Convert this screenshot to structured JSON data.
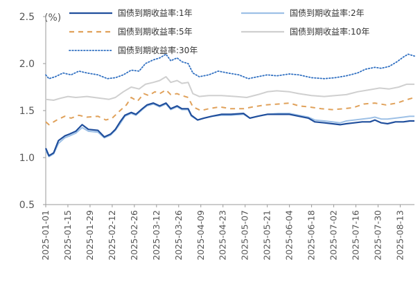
{
  "chart_data": {
    "type": "line",
    "unit": "(%)",
    "ylim": [
      0.5,
      2.5
    ],
    "yticks": [
      "0.5",
      "1.0",
      "1.5",
      "2.0",
      "2.5"
    ],
    "xticks": [
      "2025-01-01",
      "2025-01-15",
      "2025-01-29",
      "2025-02-12",
      "2025-02-26",
      "2025-03-12",
      "2025-03-26",
      "2025-04-09",
      "2025-04-23",
      "2025-05-07",
      "2025-05-21",
      "2025-06-04",
      "2025-06-18",
      "2025-07-02",
      "2025-07-16",
      "2025-07-30",
      "2025-08-13"
    ],
    "x_start": "2025-01-01",
    "x_end": "2025-08-22",
    "legend": "top, two columns",
    "grid": false,
    "series": [
      {
        "name": "国债到期收益率:1年",
        "color": "#1f4e9c",
        "style": "solid",
        "points": [
          [
            "2025-01-01",
            1.1
          ],
          [
            "2025-01-03",
            1.02
          ],
          [
            "2025-01-06",
            1.05
          ],
          [
            "2025-01-09",
            1.18
          ],
          [
            "2025-01-13",
            1.23
          ],
          [
            "2025-01-16",
            1.25
          ],
          [
            "2025-01-20",
            1.28
          ],
          [
            "2025-01-24",
            1.35
          ],
          [
            "2025-01-28",
            1.3
          ],
          [
            "2025-02-03",
            1.29
          ],
          [
            "2025-02-07",
            1.22
          ],
          [
            "2025-02-11",
            1.25
          ],
          [
            "2025-02-14",
            1.3
          ],
          [
            "2025-02-17",
            1.38
          ],
          [
            "2025-02-20",
            1.45
          ],
          [
            "2025-02-24",
            1.48
          ],
          [
            "2025-02-27",
            1.46
          ],
          [
            "2025-03-03",
            1.52
          ],
          [
            "2025-03-06",
            1.56
          ],
          [
            "2025-03-10",
            1.58
          ],
          [
            "2025-03-14",
            1.55
          ],
          [
            "2025-03-18",
            1.58
          ],
          [
            "2025-03-21",
            1.52
          ],
          [
            "2025-03-25",
            1.55
          ],
          [
            "2025-03-28",
            1.52
          ],
          [
            "2025-04-01",
            1.52
          ],
          [
            "2025-04-03",
            1.45
          ],
          [
            "2025-04-07",
            1.4
          ],
          [
            "2025-04-11",
            1.42
          ],
          [
            "2025-04-16",
            1.44
          ],
          [
            "2025-04-22",
            1.46
          ],
          [
            "2025-04-28",
            1.46
          ],
          [
            "2025-05-06",
            1.47
          ],
          [
            "2025-05-10",
            1.42
          ],
          [
            "2025-05-15",
            1.44
          ],
          [
            "2025-05-21",
            1.46
          ],
          [
            "2025-05-28",
            1.46
          ],
          [
            "2025-06-04",
            1.46
          ],
          [
            "2025-06-10",
            1.44
          ],
          [
            "2025-06-16",
            1.42
          ],
          [
            "2025-06-20",
            1.38
          ],
          [
            "2025-06-26",
            1.37
          ],
          [
            "2025-07-01",
            1.36
          ],
          [
            "2025-07-06",
            1.35
          ],
          [
            "2025-07-10",
            1.36
          ],
          [
            "2025-07-15",
            1.37
          ],
          [
            "2025-07-20",
            1.38
          ],
          [
            "2025-07-25",
            1.38
          ],
          [
            "2025-07-28",
            1.4
          ],
          [
            "2025-08-01",
            1.37
          ],
          [
            "2025-08-05",
            1.36
          ],
          [
            "2025-08-10",
            1.38
          ],
          [
            "2025-08-15",
            1.38
          ],
          [
            "2025-08-19",
            1.39
          ],
          [
            "2025-08-22",
            1.39
          ]
        ]
      },
      {
        "name": "国债到期收益率:2年",
        "color": "#9dc0e6",
        "style": "solid",
        "points": [
          [
            "2025-01-01",
            1.08
          ],
          [
            "2025-01-03",
            1.01
          ],
          [
            "2025-01-06",
            1.04
          ],
          [
            "2025-01-09",
            1.15
          ],
          [
            "2025-01-13",
            1.21
          ],
          [
            "2025-01-16",
            1.23
          ],
          [
            "2025-01-20",
            1.26
          ],
          [
            "2025-01-24",
            1.32
          ],
          [
            "2025-01-28",
            1.28
          ],
          [
            "2025-02-03",
            1.27
          ],
          [
            "2025-02-07",
            1.21
          ],
          [
            "2025-02-11",
            1.24
          ],
          [
            "2025-02-14",
            1.29
          ],
          [
            "2025-02-17",
            1.36
          ],
          [
            "2025-02-20",
            1.44
          ],
          [
            "2025-02-24",
            1.47
          ],
          [
            "2025-02-27",
            1.45
          ],
          [
            "2025-03-03",
            1.51
          ],
          [
            "2025-03-06",
            1.55
          ],
          [
            "2025-03-10",
            1.57
          ],
          [
            "2025-03-14",
            1.54
          ],
          [
            "2025-03-18",
            1.57
          ],
          [
            "2025-03-21",
            1.51
          ],
          [
            "2025-03-25",
            1.54
          ],
          [
            "2025-03-28",
            1.51
          ],
          [
            "2025-04-01",
            1.51
          ],
          [
            "2025-04-03",
            1.44
          ],
          [
            "2025-04-07",
            1.4
          ],
          [
            "2025-04-11",
            1.42
          ],
          [
            "2025-04-16",
            1.44
          ],
          [
            "2025-04-22",
            1.45
          ],
          [
            "2025-04-28",
            1.45
          ],
          [
            "2025-05-06",
            1.46
          ],
          [
            "2025-05-10",
            1.42
          ],
          [
            "2025-05-15",
            1.44
          ],
          [
            "2025-05-21",
            1.46
          ],
          [
            "2025-05-28",
            1.47
          ],
          [
            "2025-06-04",
            1.47
          ],
          [
            "2025-06-10",
            1.45
          ],
          [
            "2025-06-16",
            1.43
          ],
          [
            "2025-06-20",
            1.4
          ],
          [
            "2025-06-26",
            1.39
          ],
          [
            "2025-07-01",
            1.38
          ],
          [
            "2025-07-06",
            1.37
          ],
          [
            "2025-07-10",
            1.39
          ],
          [
            "2025-07-15",
            1.4
          ],
          [
            "2025-07-20",
            1.41
          ],
          [
            "2025-07-25",
            1.42
          ],
          [
            "2025-07-28",
            1.43
          ],
          [
            "2025-08-01",
            1.41
          ],
          [
            "2025-08-05",
            1.41
          ],
          [
            "2025-08-10",
            1.42
          ],
          [
            "2025-08-15",
            1.43
          ],
          [
            "2025-08-19",
            1.44
          ],
          [
            "2025-08-22",
            1.44
          ]
        ]
      },
      {
        "name": "国债到期收益率:5年",
        "color": "#e0a15a",
        "style": "dashed",
        "points": [
          [
            "2025-01-01",
            1.38
          ],
          [
            "2025-01-03",
            1.35
          ],
          [
            "2025-01-08",
            1.4
          ],
          [
            "2025-01-13",
            1.44
          ],
          [
            "2025-01-17",
            1.42
          ],
          [
            "2025-01-22",
            1.45
          ],
          [
            "2025-01-27",
            1.43
          ],
          [
            "2025-02-03",
            1.44
          ],
          [
            "2025-02-08",
            1.4
          ],
          [
            "2025-02-12",
            1.42
          ],
          [
            "2025-02-17",
            1.5
          ],
          [
            "2025-02-21",
            1.56
          ],
          [
            "2025-02-24",
            1.64
          ],
          [
            "2025-02-28",
            1.6
          ],
          [
            "2025-03-04",
            1.68
          ],
          [
            "2025-03-07",
            1.66
          ],
          [
            "2025-03-11",
            1.7
          ],
          [
            "2025-03-14",
            1.68
          ],
          [
            "2025-03-18",
            1.72
          ],
          [
            "2025-03-21",
            1.67
          ],
          [
            "2025-03-25",
            1.68
          ],
          [
            "2025-03-28",
            1.66
          ],
          [
            "2025-04-01",
            1.64
          ],
          [
            "2025-04-04",
            1.54
          ],
          [
            "2025-04-09",
            1.5
          ],
          [
            "2025-04-14",
            1.52
          ],
          [
            "2025-04-21",
            1.54
          ],
          [
            "2025-04-28",
            1.52
          ],
          [
            "2025-05-06",
            1.52
          ],
          [
            "2025-05-12",
            1.54
          ],
          [
            "2025-05-20",
            1.56
          ],
          [
            "2025-05-28",
            1.57
          ],
          [
            "2025-06-04",
            1.58
          ],
          [
            "2025-06-10",
            1.55
          ],
          [
            "2025-06-16",
            1.54
          ],
          [
            "2025-06-24",
            1.52
          ],
          [
            "2025-07-01",
            1.51
          ],
          [
            "2025-07-08",
            1.52
          ],
          [
            "2025-07-14",
            1.53
          ],
          [
            "2025-07-21",
            1.57
          ],
          [
            "2025-07-28",
            1.58
          ],
          [
            "2025-08-04",
            1.56
          ],
          [
            "2025-08-11",
            1.58
          ],
          [
            "2025-08-16",
            1.61
          ],
          [
            "2025-08-22",
            1.64
          ]
        ]
      },
      {
        "name": "国债到期收益率:10年",
        "color": "#cfcfcf",
        "style": "solid",
        "points": [
          [
            "2025-01-01",
            1.62
          ],
          [
            "2025-01-06",
            1.61
          ],
          [
            "2025-01-10",
            1.63
          ],
          [
            "2025-01-15",
            1.65
          ],
          [
            "2025-01-20",
            1.64
          ],
          [
            "2025-01-27",
            1.65
          ],
          [
            "2025-02-05",
            1.63
          ],
          [
            "2025-02-10",
            1.62
          ],
          [
            "2025-02-14",
            1.64
          ],
          [
            "2025-02-19",
            1.7
          ],
          [
            "2025-02-24",
            1.75
          ],
          [
            "2025-03-01",
            1.73
          ],
          [
            "2025-03-05",
            1.78
          ],
          [
            "2025-03-10",
            1.8
          ],
          [
            "2025-03-14",
            1.82
          ],
          [
            "2025-03-18",
            1.86
          ],
          [
            "2025-03-21",
            1.8
          ],
          [
            "2025-03-25",
            1.82
          ],
          [
            "2025-03-28",
            1.79
          ],
          [
            "2025-04-01",
            1.8
          ],
          [
            "2025-04-04",
            1.68
          ],
          [
            "2025-04-08",
            1.65
          ],
          [
            "2025-04-14",
            1.66
          ],
          [
            "2025-04-22",
            1.66
          ],
          [
            "2025-05-01",
            1.65
          ],
          [
            "2025-05-08",
            1.64
          ],
          [
            "2025-05-15",
            1.67
          ],
          [
            "2025-05-21",
            1.7
          ],
          [
            "2025-05-27",
            1.71
          ],
          [
            "2025-06-04",
            1.7
          ],
          [
            "2025-06-10",
            1.68
          ],
          [
            "2025-06-18",
            1.66
          ],
          [
            "2025-06-26",
            1.65
          ],
          [
            "2025-07-03",
            1.66
          ],
          [
            "2025-07-10",
            1.67
          ],
          [
            "2025-07-17",
            1.7
          ],
          [
            "2025-07-24",
            1.72
          ],
          [
            "2025-07-31",
            1.74
          ],
          [
            "2025-08-06",
            1.73
          ],
          [
            "2025-08-12",
            1.75
          ],
          [
            "2025-08-17",
            1.78
          ],
          [
            "2025-08-22",
            1.78
          ]
        ]
      },
      {
        "name": "国债到期收益率:30年",
        "color": "#2f6fc1",
        "style": "dotted",
        "points": [
          [
            "2025-01-01",
            1.88
          ],
          [
            "2025-01-03",
            1.84
          ],
          [
            "2025-01-07",
            1.86
          ],
          [
            "2025-01-12",
            1.9
          ],
          [
            "2025-01-17",
            1.88
          ],
          [
            "2025-01-22",
            1.92
          ],
          [
            "2025-01-27",
            1.9
          ],
          [
            "2025-02-03",
            1.88
          ],
          [
            "2025-02-09",
            1.84
          ],
          [
            "2025-02-14",
            1.85
          ],
          [
            "2025-02-19",
            1.88
          ],
          [
            "2025-02-24",
            1.93
          ],
          [
            "2025-03-01",
            1.92
          ],
          [
            "2025-03-05",
            2.0
          ],
          [
            "2025-03-10",
            2.04
          ],
          [
            "2025-03-14",
            2.06
          ],
          [
            "2025-03-18",
            2.1
          ],
          [
            "2025-03-21",
            2.03
          ],
          [
            "2025-03-25",
            2.06
          ],
          [
            "2025-03-28",
            2.02
          ],
          [
            "2025-04-01",
            2.0
          ],
          [
            "2025-04-04",
            1.9
          ],
          [
            "2025-04-08",
            1.86
          ],
          [
            "2025-04-14",
            1.88
          ],
          [
            "2025-04-20",
            1.92
          ],
          [
            "2025-04-26",
            1.9
          ],
          [
            "2025-05-03",
            1.88
          ],
          [
            "2025-05-09",
            1.84
          ],
          [
            "2025-05-15",
            1.86
          ],
          [
            "2025-05-21",
            1.88
          ],
          [
            "2025-05-27",
            1.87
          ],
          [
            "2025-06-04",
            1.89
          ],
          [
            "2025-06-10",
            1.88
          ],
          [
            "2025-06-18",
            1.85
          ],
          [
            "2025-06-26",
            1.84
          ],
          [
            "2025-07-03",
            1.85
          ],
          [
            "2025-07-10",
            1.87
          ],
          [
            "2025-07-17",
            1.9
          ],
          [
            "2025-07-22",
            1.94
          ],
          [
            "2025-07-28",
            1.96
          ],
          [
            "2025-08-01",
            1.95
          ],
          [
            "2025-08-06",
            1.97
          ],
          [
            "2025-08-11",
            2.02
          ],
          [
            "2025-08-15",
            2.07
          ],
          [
            "2025-08-18",
            2.1
          ],
          [
            "2025-08-22",
            2.08
          ]
        ]
      }
    ]
  }
}
